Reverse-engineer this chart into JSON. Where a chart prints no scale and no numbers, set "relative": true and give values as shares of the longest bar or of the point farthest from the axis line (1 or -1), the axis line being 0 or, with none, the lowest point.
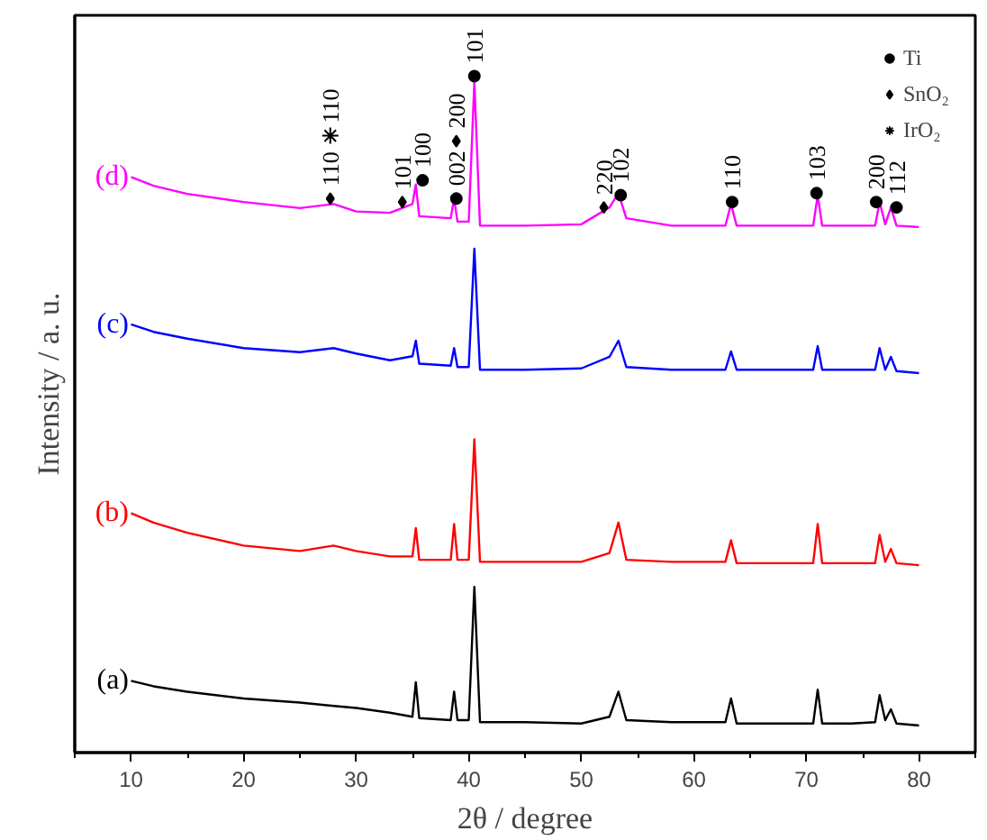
{
  "chart_data": {
    "type": "line",
    "relative": true,
    "xlabel": "2θ / degree",
    "ylabel": "Intensity / a. u.",
    "xlim": [
      5,
      85
    ],
    "xticks": [
      10,
      20,
      30,
      40,
      50,
      60,
      70,
      80
    ],
    "tick_labels": "x",
    "legend": "top right",
    "x": [
      10,
      12,
      15,
      20,
      25,
      28,
      30,
      33,
      35,
      35.3,
      35.6,
      38.4,
      38.7,
      39.0,
      40.0,
      40.5,
      41.0,
      45,
      50,
      52.5,
      53.3,
      54,
      58,
      62.8,
      63.3,
      63.8,
      67,
      70.6,
      71.0,
      71.4,
      74,
      76.1,
      76.5,
      77.0,
      77.5,
      78,
      80
    ],
    "series": [
      {
        "name": "(a)",
        "color": "#000000",
        "values": [
          0.106,
          0.098,
          0.09,
          0.08,
          0.074,
          0.069,
          0.066,
          0.059,
          0.053,
          0.104,
          0.051,
          0.048,
          0.09,
          0.048,
          0.048,
          0.245,
          0.045,
          0.045,
          0.043,
          0.053,
          0.09,
          0.048,
          0.045,
          0.045,
          0.08,
          0.043,
          0.043,
          0.043,
          0.093,
          0.043,
          0.043,
          0.045,
          0.085,
          0.048,
          0.064,
          0.043,
          0.04
        ]
      },
      {
        "name": "(b)",
        "color": "#ff0000",
        "values": [
          0.354,
          0.34,
          0.325,
          0.306,
          0.298,
          0.306,
          0.298,
          0.29,
          0.29,
          0.332,
          0.285,
          0.285,
          0.338,
          0.285,
          0.285,
          0.463,
          0.282,
          0.282,
          0.282,
          0.295,
          0.34,
          0.285,
          0.282,
          0.282,
          0.314,
          0.28,
          0.28,
          0.28,
          0.338,
          0.28,
          0.28,
          0.28,
          0.322,
          0.282,
          0.301,
          0.28,
          0.277
        ]
      },
      {
        "name": "(c)",
        "color": "#0000ff",
        "values": [
          0.633,
          0.622,
          0.612,
          0.598,
          0.592,
          0.598,
          0.59,
          0.58,
          0.586,
          0.609,
          0.575,
          0.572,
          0.598,
          0.57,
          0.57,
          0.745,
          0.566,
          0.566,
          0.568,
          0.585,
          0.609,
          0.57,
          0.566,
          0.566,
          0.593,
          0.566,
          0.566,
          0.566,
          0.601,
          0.566,
          0.566,
          0.566,
          0.598,
          0.566,
          0.585,
          0.564,
          0.561
        ]
      },
      {
        "name": "(d)",
        "color": "#ff00ff",
        "values": [
          0.851,
          0.838,
          0.826,
          0.814,
          0.805,
          0.811,
          0.8,
          0.798,
          0.811,
          0.84,
          0.793,
          0.79,
          0.819,
          0.785,
          0.785,
          0.992,
          0.779,
          0.779,
          0.781,
          0.806,
          0.827,
          0.79,
          0.779,
          0.779,
          0.811,
          0.779,
          0.779,
          0.779,
          0.824,
          0.779,
          0.779,
          0.779,
          0.814,
          0.781,
          0.806,
          0.779,
          0.777
        ]
      },
      {
        "name": "Ti",
        "type": "scatter",
        "marker": "circle",
        "color": "#000000",
        "x": [
          35.9,
          38.9,
          40.5,
          53.5,
          63.4,
          70.9,
          76.2,
          78.0
        ],
        "values": [
          0.846,
          0.819,
          1.0,
          0.824,
          0.814,
          0.827,
          0.814,
          0.806
        ]
      },
      {
        "name": "SnO₂",
        "type": "scatter",
        "marker": "diamond",
        "color": "#000000",
        "x": [
          27.7,
          34.1,
          38.9,
          52.0
        ],
        "values": [
          0.819,
          0.814,
          0.904,
          0.806
        ]
      },
      {
        "name": "IrO₂",
        "type": "scatter",
        "marker": "cross",
        "color": "#000000",
        "x": [
          27.7
        ],
        "values": [
          0.912
        ]
      }
    ],
    "annotations": [
      {
        "text": "110",
        "x": 27.7,
        "y": 0.819
      },
      {
        "text": "110",
        "x": 27.7,
        "y": 0.912
      },
      {
        "text": "101",
        "x": 34.1,
        "y": 0.814
      },
      {
        "text": "100",
        "x": 35.9,
        "y": 0.846
      },
      {
        "text": "002",
        "x": 38.9,
        "y": 0.819
      },
      {
        "text": "200",
        "x": 38.9,
        "y": 0.904
      },
      {
        "text": "101",
        "x": 40.5,
        "y": 1.0
      },
      {
        "text": "220",
        "x": 52.0,
        "y": 0.806
      },
      {
        "text": "102",
        "x": 53.5,
        "y": 0.824
      },
      {
        "text": "110",
        "x": 63.4,
        "y": 0.814
      },
      {
        "text": "103",
        "x": 70.9,
        "y": 0.827
      },
      {
        "text": "200",
        "x": 76.2,
        "y": 0.814
      },
      {
        "text": "112",
        "x": 78.0,
        "y": 0.806
      }
    ]
  }
}
